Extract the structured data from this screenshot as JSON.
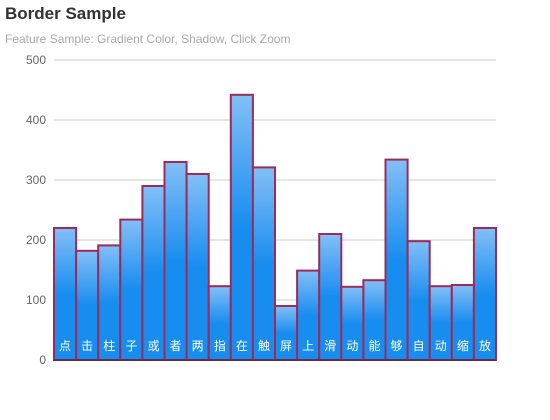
{
  "chart_data": {
    "type": "bar",
    "title": "Border Sample",
    "subtitle": "Feature Sample: Gradient Color, Shadow, Click Zoom",
    "categories": [
      "点",
      "击",
      "柱",
      "子",
      "或",
      "者",
      "两",
      "指",
      "在",
      "触",
      "屏",
      "上",
      "滑",
      "动",
      "能",
      "够",
      "自",
      "动",
      "缩",
      "放"
    ],
    "values": [
      220,
      182,
      191,
      234,
      290,
      330,
      310,
      123,
      442,
      321,
      90,
      149,
      210,
      122,
      133,
      334,
      198,
      123,
      125,
      220
    ],
    "ylim": [
      0,
      500
    ],
    "yticks": [
      0,
      100,
      200,
      300,
      400,
      500
    ],
    "grid": true,
    "colors": {
      "gradient_top": "#83bff6",
      "gradient_mid": "#188df0",
      "gradient_bottom": "#188df0",
      "border": "#9e2a5a",
      "grid": "#cccccc",
      "axis": "#333333",
      "tick_label": "#666666",
      "category_label": "#ffffff"
    }
  }
}
